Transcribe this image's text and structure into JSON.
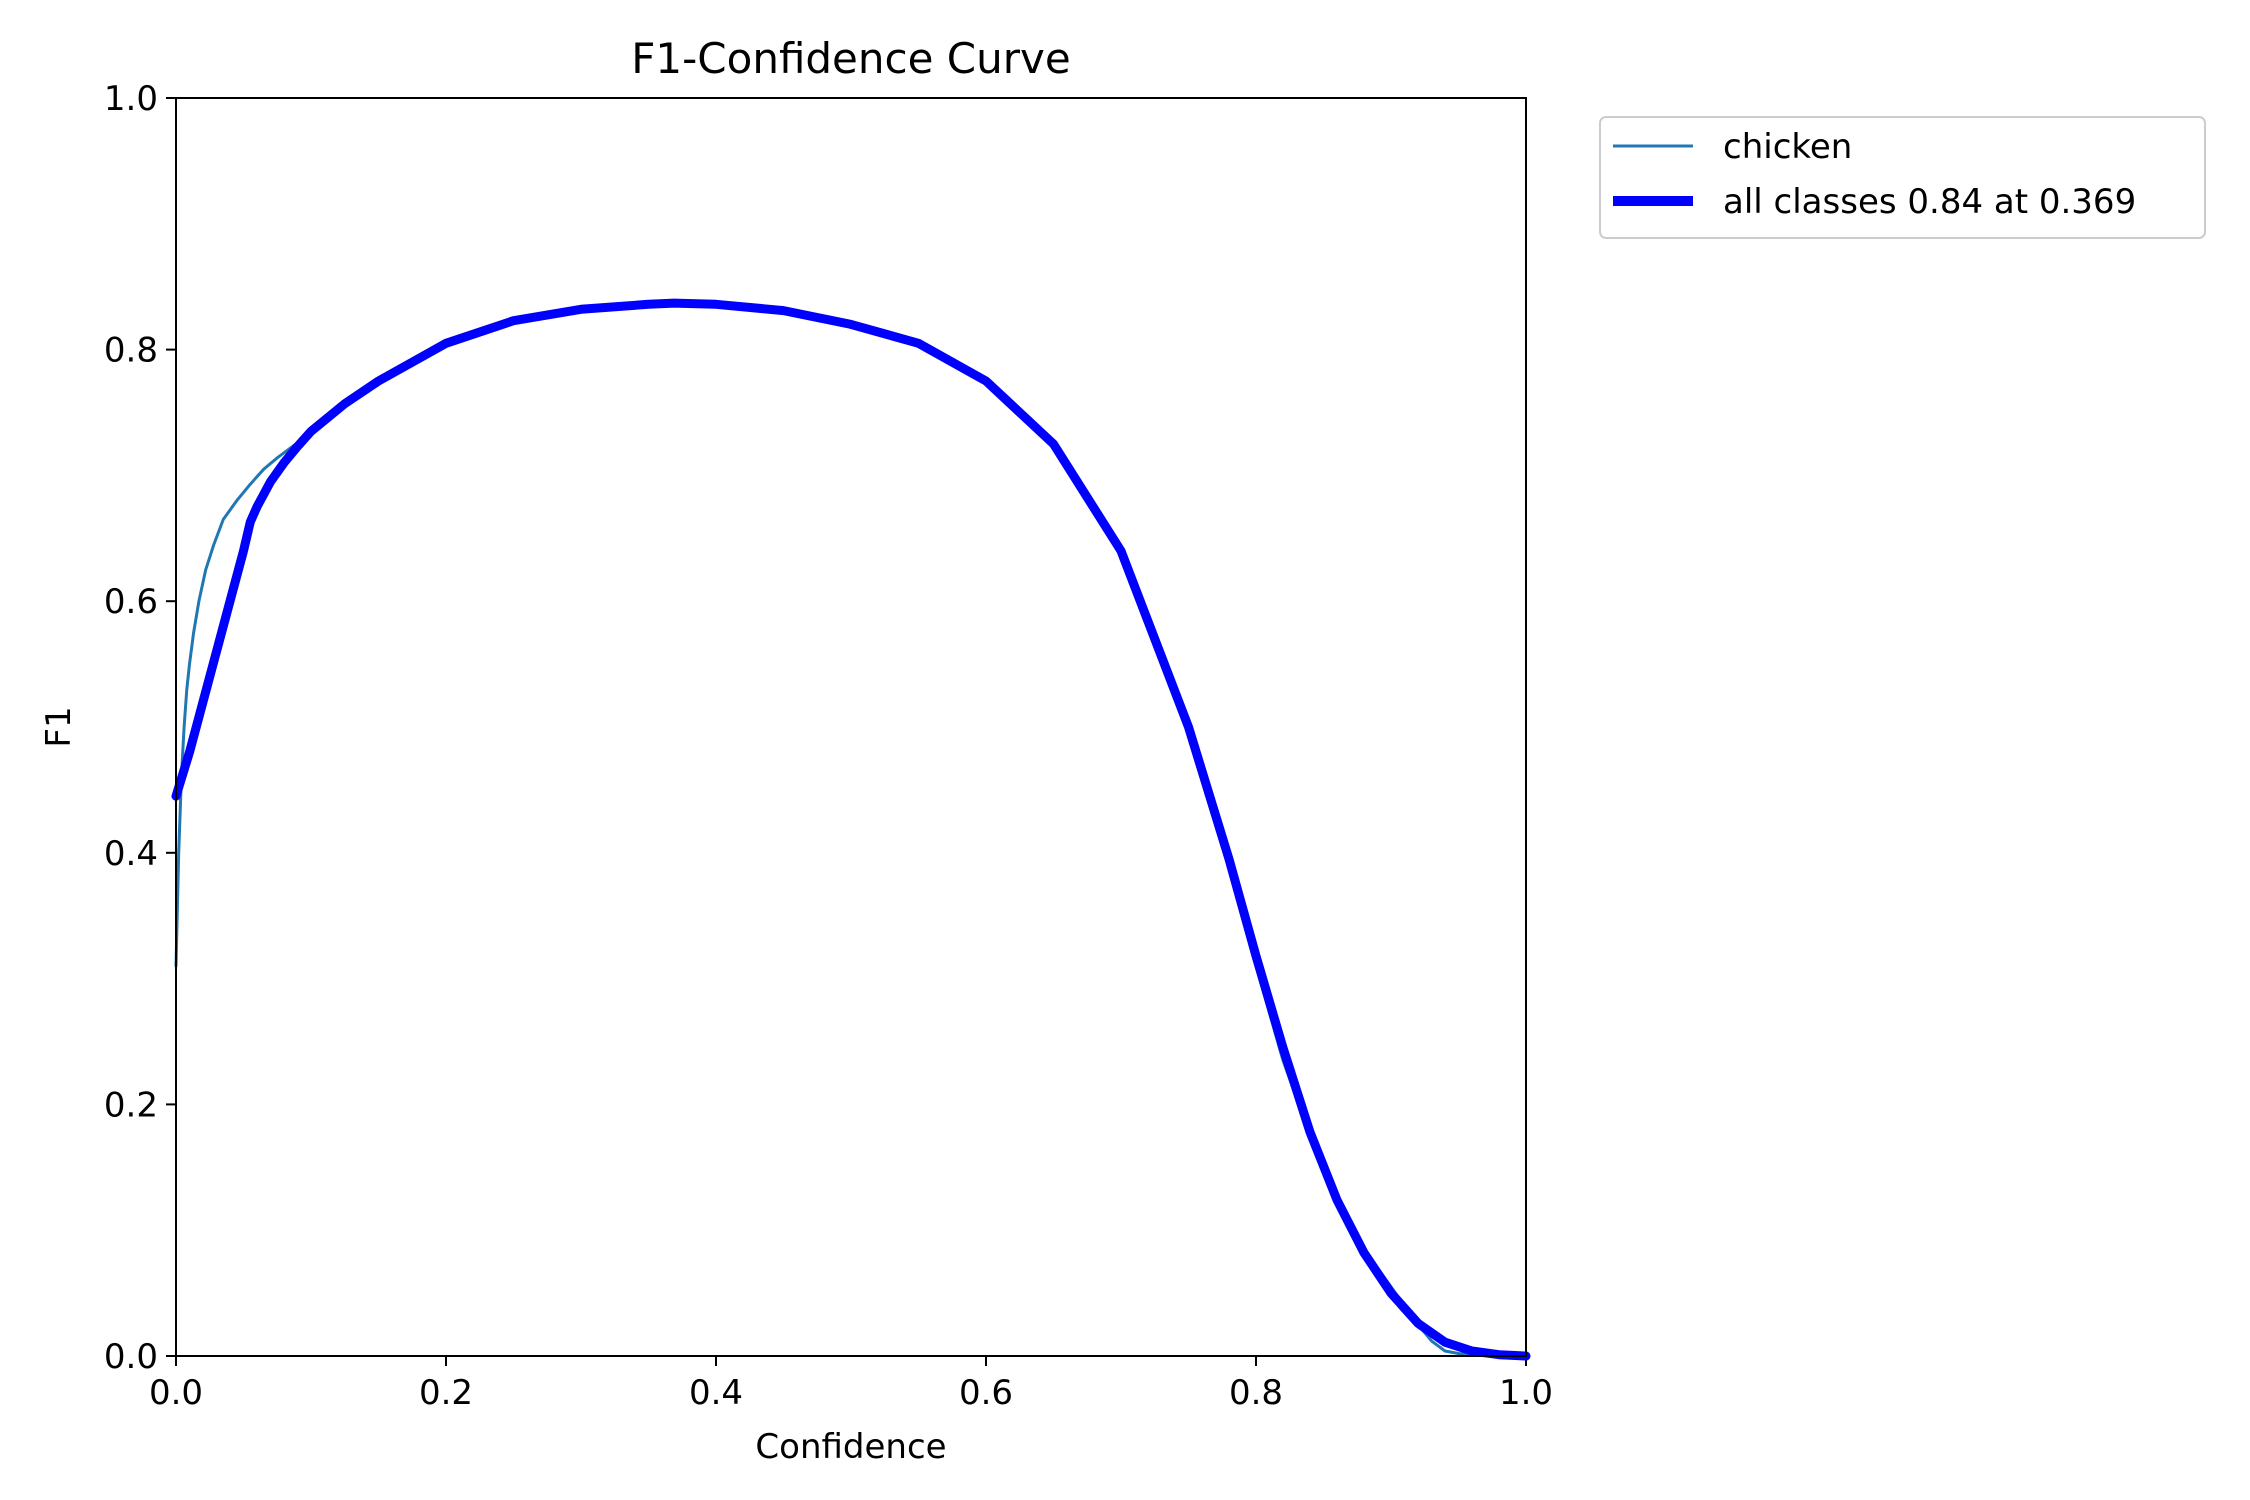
{
  "chart_data": {
    "type": "line",
    "title": "F1-Confidence Curve",
    "xlabel": "Confidence",
    "ylabel": "F1",
    "xlim": [
      0.0,
      1.0
    ],
    "ylim": [
      0.0,
      1.0
    ],
    "xticks": [
      "0.0",
      "0.2",
      "0.4",
      "0.6",
      "0.8",
      "1.0"
    ],
    "yticks": [
      "0.0",
      "0.2",
      "0.4",
      "0.6",
      "0.8",
      "1.0"
    ],
    "grid": false,
    "legend_position": "outside-top-right",
    "series": [
      {
        "name": "chicken",
        "color": "#1f77b4",
        "style": "thin",
        "x": [
          0.0,
          0.002,
          0.004,
          0.006,
          0.008,
          0.01,
          0.013,
          0.017,
          0.022,
          0.028,
          0.035,
          0.045,
          0.055,
          0.065,
          0.075,
          0.09,
          0.1,
          0.125,
          0.15,
          0.2,
          0.25,
          0.3,
          0.35,
          0.369,
          0.4,
          0.45,
          0.5,
          0.55,
          0.6,
          0.65,
          0.7,
          0.75,
          0.78,
          0.8,
          0.82,
          0.84,
          0.86,
          0.88,
          0.9,
          0.92,
          0.93,
          0.94,
          0.95,
          0.96,
          0.98,
          1.0
        ],
        "y": [
          0.31,
          0.4,
          0.46,
          0.5,
          0.53,
          0.55,
          0.575,
          0.6,
          0.625,
          0.645,
          0.665,
          0.68,
          0.693,
          0.705,
          0.714,
          0.726,
          0.735,
          0.757,
          0.775,
          0.805,
          0.823,
          0.832,
          0.836,
          0.837,
          0.836,
          0.831,
          0.82,
          0.805,
          0.775,
          0.725,
          0.64,
          0.5,
          0.39,
          0.31,
          0.235,
          0.175,
          0.125,
          0.085,
          0.055,
          0.025,
          0.012,
          0.004,
          0.002,
          0.001,
          0.0005,
          0.0
        ]
      },
      {
        "name": "all classes 0.84 at 0.369",
        "color": "#0000ff",
        "style": "thick",
        "x": [
          0.0,
          0.01,
          0.02,
          0.03,
          0.04,
          0.05,
          0.055,
          0.06,
          0.07,
          0.08,
          0.09,
          0.1,
          0.125,
          0.15,
          0.2,
          0.25,
          0.3,
          0.35,
          0.369,
          0.4,
          0.45,
          0.5,
          0.55,
          0.6,
          0.65,
          0.7,
          0.75,
          0.78,
          0.8,
          0.82,
          0.84,
          0.86,
          0.88,
          0.9,
          0.92,
          0.94,
          0.96,
          0.98,
          0.99,
          1.0
        ],
        "y": [
          0.445,
          0.48,
          0.52,
          0.56,
          0.6,
          0.64,
          0.663,
          0.675,
          0.695,
          0.71,
          0.723,
          0.735,
          0.757,
          0.775,
          0.805,
          0.823,
          0.832,
          0.836,
          0.837,
          0.836,
          0.831,
          0.82,
          0.805,
          0.775,
          0.725,
          0.64,
          0.5,
          0.395,
          0.318,
          0.245,
          0.178,
          0.124,
          0.082,
          0.05,
          0.026,
          0.011,
          0.004,
          0.001,
          0.0005,
          0.0
        ]
      }
    ]
  }
}
